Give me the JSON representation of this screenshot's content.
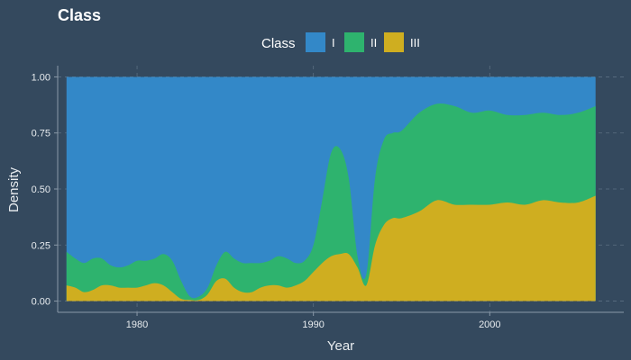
{
  "colors": {
    "background": "#34495e",
    "I": "#3388c8",
    "II": "#2eb36e",
    "III": "#cfae20"
  },
  "chart_data": {
    "type": "area",
    "subtype": "stacked-density-fill",
    "title": "Class",
    "xlabel": "Year",
    "ylabel": "Density",
    "xlim": [
      1975.5,
      2007.6
    ],
    "ylim": [
      -0.05,
      1.05
    ],
    "x_ticks": [
      1980,
      1990,
      2000
    ],
    "y_ticks": [
      0.0,
      0.25,
      0.5,
      0.75,
      1.0
    ],
    "y_tick_labels": [
      "0.00",
      "0.25",
      "0.50",
      "0.75",
      "1.00"
    ],
    "grid": true,
    "legend": {
      "title": "Class",
      "position": "top",
      "entries": [
        "I",
        "II",
        "III"
      ]
    },
    "x": [
      1976,
      1976.5,
      1977,
      1977.5,
      1978,
      1978.5,
      1979,
      1979.5,
      1980,
      1980.5,
      1981,
      1981.5,
      1982,
      1982.5,
      1983,
      1983.5,
      1984,
      1984.5,
      1985,
      1985.5,
      1986,
      1986.5,
      1987,
      1987.5,
      1988,
      1988.5,
      1989,
      1989.5,
      1990,
      1990.5,
      1991,
      1991.5,
      1992,
      1992.5,
      1993,
      1993.5,
      1994,
      1994.5,
      1995,
      1996,
      1997,
      1998,
      1999,
      2000,
      2001,
      2002,
      2003,
      2004,
      2005,
      2006
    ],
    "series": [
      {
        "name": "III",
        "cumulative_top": [
          0.07,
          0.06,
          0.04,
          0.05,
          0.07,
          0.07,
          0.06,
          0.06,
          0.06,
          0.07,
          0.08,
          0.07,
          0.04,
          0.01,
          0.005,
          0.005,
          0.03,
          0.09,
          0.1,
          0.06,
          0.04,
          0.04,
          0.06,
          0.07,
          0.07,
          0.06,
          0.07,
          0.09,
          0.13,
          0.17,
          0.2,
          0.21,
          0.21,
          0.15,
          0.07,
          0.25,
          0.34,
          0.37,
          0.37,
          0.4,
          0.45,
          0.43,
          0.43,
          0.43,
          0.44,
          0.43,
          0.45,
          0.44,
          0.44,
          0.47
        ]
      },
      {
        "name": "II",
        "cumulative_top": [
          0.22,
          0.19,
          0.17,
          0.19,
          0.19,
          0.16,
          0.15,
          0.16,
          0.18,
          0.18,
          0.19,
          0.21,
          0.18,
          0.09,
          0.02,
          0.02,
          0.06,
          0.16,
          0.22,
          0.19,
          0.17,
          0.17,
          0.17,
          0.18,
          0.2,
          0.19,
          0.17,
          0.18,
          0.25,
          0.45,
          0.66,
          0.68,
          0.55,
          0.2,
          0.12,
          0.55,
          0.72,
          0.75,
          0.76,
          0.84,
          0.88,
          0.87,
          0.84,
          0.85,
          0.83,
          0.83,
          0.84,
          0.83,
          0.84,
          0.87
        ]
      },
      {
        "name": "I",
        "cumulative_top": [
          1,
          1,
          1,
          1,
          1,
          1,
          1,
          1,
          1,
          1,
          1,
          1,
          1,
          1,
          1,
          1,
          1,
          1,
          1,
          1,
          1,
          1,
          1,
          1,
          1,
          1,
          1,
          1,
          1,
          1,
          1,
          1,
          1,
          1,
          1,
          1,
          1,
          1,
          1,
          1,
          1,
          1,
          1,
          1,
          1,
          1,
          1,
          1,
          1,
          1
        ]
      }
    ]
  }
}
